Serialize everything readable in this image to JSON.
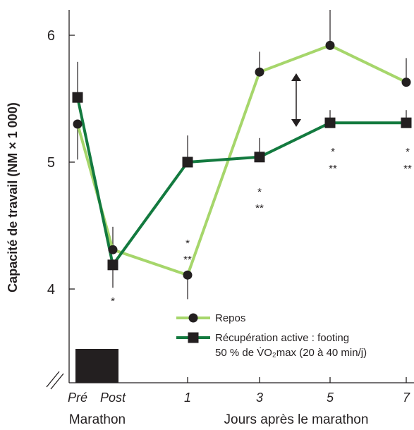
{
  "chart_data": {
    "type": "line",
    "ylabel": "Capacité de travail (NM × 1 000)",
    "categories": [
      "Pré",
      "Post",
      "1",
      "3",
      "5",
      "7"
    ],
    "y_ticks": [
      "4",
      "5",
      "6"
    ],
    "ylim": [
      3.4,
      6.2
    ],
    "group_labels": {
      "marathon": "Marathon",
      "days": "Jours après le marathon"
    },
    "colors": {
      "repos": "#a6d66b",
      "active": "#137a3f",
      "axis": "#231f20"
    },
    "series": [
      {
        "name": "Repos",
        "marker": "circle",
        "values": [
          5.3,
          4.31,
          4.11,
          5.71,
          5.92,
          5.63
        ],
        "errors": [
          0.28,
          0.18,
          0.19,
          0.16,
          0.28,
          0.19
        ]
      },
      {
        "name": "Récupération active : footing 50 % de V̇O₂max (20 à 40 min/j)",
        "name_line1": "Récupération active : footing",
        "name_line2": "50 % de V̇O₂max (20 à 40 min/j)",
        "marker": "square",
        "values": [
          5.51,
          4.19,
          5.0,
          5.04,
          5.31,
          5.31
        ],
        "errors": [
          0.28,
          0.18,
          0.21,
          0.15,
          0.1,
          0.1
        ]
      }
    ],
    "significance": [
      {
        "category": "Post",
        "marks": [
          "*"
        ]
      },
      {
        "category": "1",
        "marks": [
          "*",
          "**"
        ]
      },
      {
        "category": "3",
        "marks": [
          "*",
          "**"
        ]
      },
      {
        "category": "5",
        "marks": [
          "*",
          "**"
        ]
      },
      {
        "category": "7",
        "marks": [
          "*",
          "**"
        ]
      }
    ],
    "annotation": "double-arrow between series at day 3–5",
    "marathon_bar": "black bar spanning Pré to Post"
  }
}
